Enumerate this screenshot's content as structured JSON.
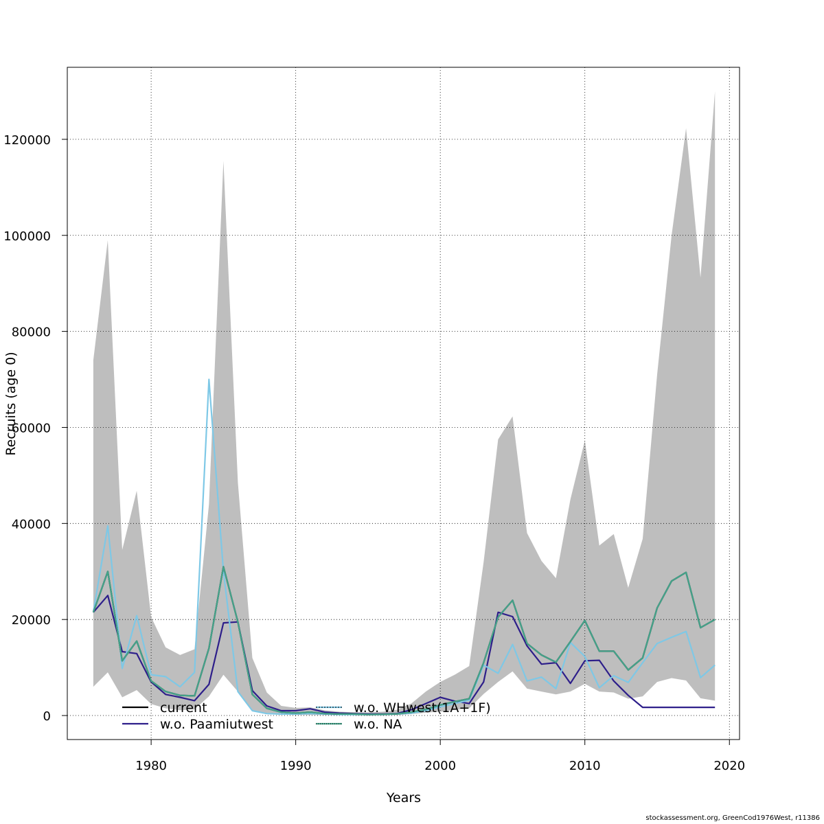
{
  "footer_text": "stockassessment.org, GreenCod1976West, r11386",
  "chart_data": {
    "type": "line",
    "xlabel": "Years",
    "ylabel": "Recruits (age 0)",
    "xlim": [
      1974.2,
      2020.7
    ],
    "ylim": [
      -5000,
      135000
    ],
    "xticks": [
      1980,
      1990,
      2000,
      2010,
      2020
    ],
    "yticks": [
      0,
      20000,
      40000,
      60000,
      80000,
      100000,
      120000
    ],
    "grid": true,
    "legend_position": "bottom-left",
    "x": [
      1976,
      1977,
      1978,
      1979,
      1980,
      1981,
      1982,
      1983,
      1984,
      1985,
      1986,
      1987,
      1988,
      1989,
      1990,
      1991,
      1992,
      1993,
      1994,
      1995,
      1996,
      1997,
      1998,
      1999,
      2000,
      2001,
      2002,
      2003,
      2004,
      2005,
      2006,
      2007,
      2008,
      2009,
      2010,
      2011,
      2012,
      2013,
      2014,
      2015,
      2016,
      2017,
      2018,
      2019
    ],
    "confidence_band": {
      "color": "#bebebe",
      "upper": [
        74000,
        99000,
        34500,
        46800,
        20500,
        14200,
        12600,
        13800,
        44000,
        115500,
        48500,
        12000,
        4800,
        2000,
        1600,
        1700,
        1100,
        800,
        700,
        650,
        800,
        1200,
        2500,
        5000,
        7000,
        8500,
        10300,
        32000,
        57500,
        62300,
        38000,
        32200,
        28600,
        45000,
        57300,
        35400,
        37800,
        26600,
        36800,
        71000,
        100000,
        122300,
        91200,
        130000
      ],
      "lower": [
        6000,
        9000,
        3800,
        5300,
        2400,
        1500,
        1100,
        1300,
        4000,
        8500,
        5000,
        1000,
        300,
        150,
        100,
        100,
        80,
        60,
        50,
        50,
        60,
        100,
        300,
        600,
        800,
        1200,
        1500,
        4500,
        7000,
        9200,
        5600,
        5000,
        4400,
        5000,
        6600,
        5000,
        4800,
        3500,
        4000,
        7000,
        7800,
        7300,
        3600,
        3100
      ]
    },
    "series": [
      {
        "name": "current",
        "color": "#000000",
        "values": [
          21500,
          30000,
          11400,
          15500,
          7200,
          5000,
          4200,
          4100,
          14000,
          31000,
          19500,
          4400,
          1500,
          700,
          500,
          700,
          400,
          300,
          300,
          200,
          250,
          350,
          700,
          1300,
          2200,
          2900,
          3500,
          11000,
          20500,
          24000,
          15000,
          12600,
          11100,
          15400,
          19800,
          13400,
          13400,
          9500,
          12000,
          22400,
          28000,
          29800,
          18300,
          20000
        ]
      },
      {
        "name": "w.o. Paamiutwest",
        "color": "#2d1e8a",
        "values": [
          21500,
          25000,
          13300,
          12900,
          7000,
          4400,
          3800,
          3100,
          6500,
          19300,
          19500,
          5200,
          2000,
          1000,
          1000,
          1400,
          700,
          500,
          400,
          300,
          300,
          400,
          1200,
          2500,
          3800,
          3000,
          2500,
          7000,
          21500,
          20600,
          14500,
          10700,
          11000,
          6700,
          11400,
          11500,
          7200,
          4200,
          1700,
          1700,
          1700,
          1700,
          1700,
          1700
        ]
      },
      {
        "name": "w.o. WHwest(1A+1F)",
        "color": "#7ec8e6",
        "values": [
          21500,
          39500,
          9800,
          20800,
          8500,
          8100,
          6000,
          9000,
          70000,
          30000,
          5000,
          1000,
          400,
          300,
          300,
          400,
          300,
          200,
          200,
          200,
          200,
          300,
          500,
          1000,
          1800,
          2500,
          3200,
          10500,
          8800,
          14800,
          7200,
          8000,
          5600,
          15200,
          12300,
          5800,
          8300,
          6900,
          11000,
          15000,
          16300,
          17500,
          7900,
          10500
        ]
      },
      {
        "name": "w.o. NA",
        "color": "#44a38a",
        "values": [
          21500,
          30000,
          11400,
          15500,
          7200,
          5000,
          4200,
          4100,
          14000,
          31000,
          19500,
          4400,
          1500,
          700,
          500,
          700,
          400,
          300,
          300,
          200,
          250,
          350,
          700,
          1300,
          2200,
          2900,
          3500,
          11000,
          20500,
          24000,
          15000,
          12600,
          11100,
          15400,
          19800,
          13400,
          13400,
          9500,
          12000,
          22400,
          28000,
          29800,
          18300,
          20000
        ]
      }
    ]
  }
}
